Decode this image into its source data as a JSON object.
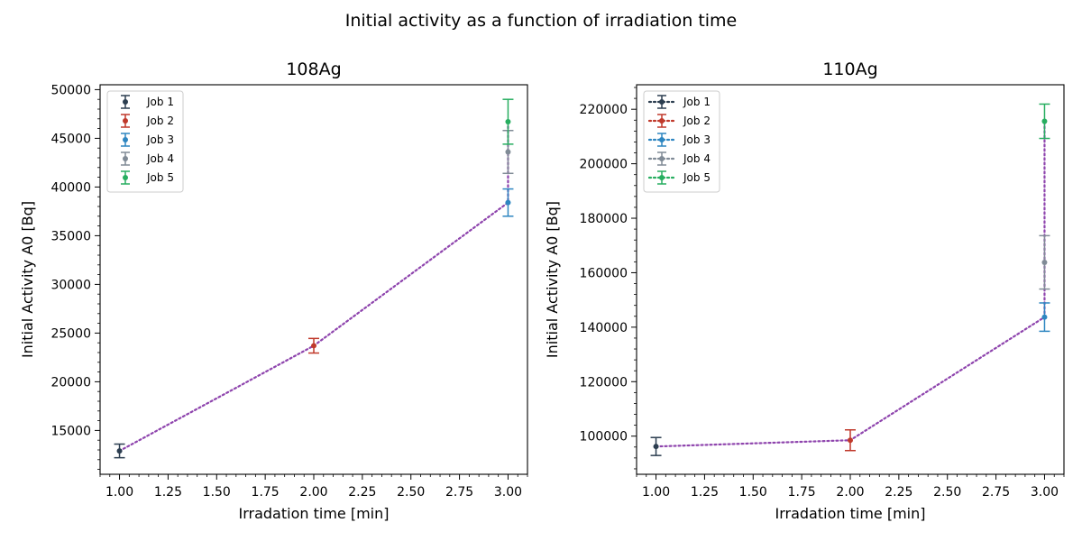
{
  "suptitle": "Initial activity as a function of irradiation time",
  "chart_data": [
    {
      "type": "scatter",
      "title": "108Ag",
      "xlabel": "Irradation time [min]",
      "ylabel": "Initial Activity A0 [Bq]",
      "xlim": [
        0.9,
        3.1
      ],
      "ylim": [
        10500,
        50500
      ],
      "xticks": [
        "1.00",
        "1.25",
        "1.50",
        "1.75",
        "2.00",
        "2.25",
        "2.50",
        "2.75",
        "3.00"
      ],
      "yticks": [
        "15000",
        "20000",
        "25000",
        "30000",
        "35000",
        "40000",
        "45000",
        "50000"
      ],
      "legend_position": "upper-left",
      "legend_line_style": "none",
      "series": [
        {
          "name": "Job 1",
          "color": "#2c3e50",
          "points": [
            {
              "x": 1.0,
              "y": 12900,
              "err": 700
            }
          ]
        },
        {
          "name": "Job 2",
          "color": "#c0392b",
          "points": [
            {
              "x": 2.0,
              "y": 23700,
              "err": 750
            }
          ]
        },
        {
          "name": "Job 3",
          "color": "#2e86c1",
          "points": [
            {
              "x": 3.0,
              "y": 38400,
              "err": 1400
            }
          ]
        },
        {
          "name": "Job 4",
          "color": "#808b96",
          "points": [
            {
              "x": 3.0,
              "y": 43600,
              "err": 2200
            }
          ]
        },
        {
          "name": "Job 5",
          "color": "#27ae60",
          "points": [
            {
              "x": 3.0,
              "y": 46700,
              "err": 2300
            }
          ]
        }
      ],
      "connector": {
        "color": "#8e44ad",
        "style": "dotted",
        "points": [
          [
            1.0,
            12900
          ],
          [
            2.0,
            23700
          ],
          [
            3.0,
            38400
          ],
          [
            3.0,
            43600
          ],
          [
            3.0,
            46700
          ]
        ]
      }
    },
    {
      "type": "scatter",
      "title": "110Ag",
      "xlabel": "Irradation time [min]",
      "ylabel": "Initial Activity A0 [Bq]",
      "xlim": [
        0.9,
        3.1
      ],
      "ylim": [
        86000,
        229000
      ],
      "xticks": [
        "1.00",
        "1.25",
        "1.50",
        "1.75",
        "2.00",
        "2.25",
        "2.50",
        "2.75",
        "3.00"
      ],
      "yticks": [
        "100000",
        "120000",
        "140000",
        "160000",
        "180000",
        "200000",
        "220000"
      ],
      "legend_position": "upper-left",
      "legend_line_style": "dotted",
      "series": [
        {
          "name": "Job 1",
          "color": "#2c3e50",
          "points": [
            {
              "x": 1.0,
              "y": 96200,
              "err": 3300
            }
          ]
        },
        {
          "name": "Job 2",
          "color": "#c0392b",
          "points": [
            {
              "x": 2.0,
              "y": 98500,
              "err": 3800
            }
          ]
        },
        {
          "name": "Job 3",
          "color": "#2e86c1",
          "points": [
            {
              "x": 3.0,
              "y": 143700,
              "err": 5200
            }
          ]
        },
        {
          "name": "Job 4",
          "color": "#808b96",
          "points": [
            {
              "x": 3.0,
              "y": 163800,
              "err": 9800
            }
          ]
        },
        {
          "name": "Job 5",
          "color": "#27ae60",
          "points": [
            {
              "x": 3.0,
              "y": 215600,
              "err": 6300
            }
          ]
        }
      ],
      "connector": {
        "color": "#8e44ad",
        "style": "dotted",
        "points": [
          [
            1.0,
            96200
          ],
          [
            2.0,
            98500
          ],
          [
            3.0,
            143700
          ],
          [
            3.0,
            163800
          ],
          [
            3.0,
            215600
          ]
        ]
      }
    }
  ]
}
